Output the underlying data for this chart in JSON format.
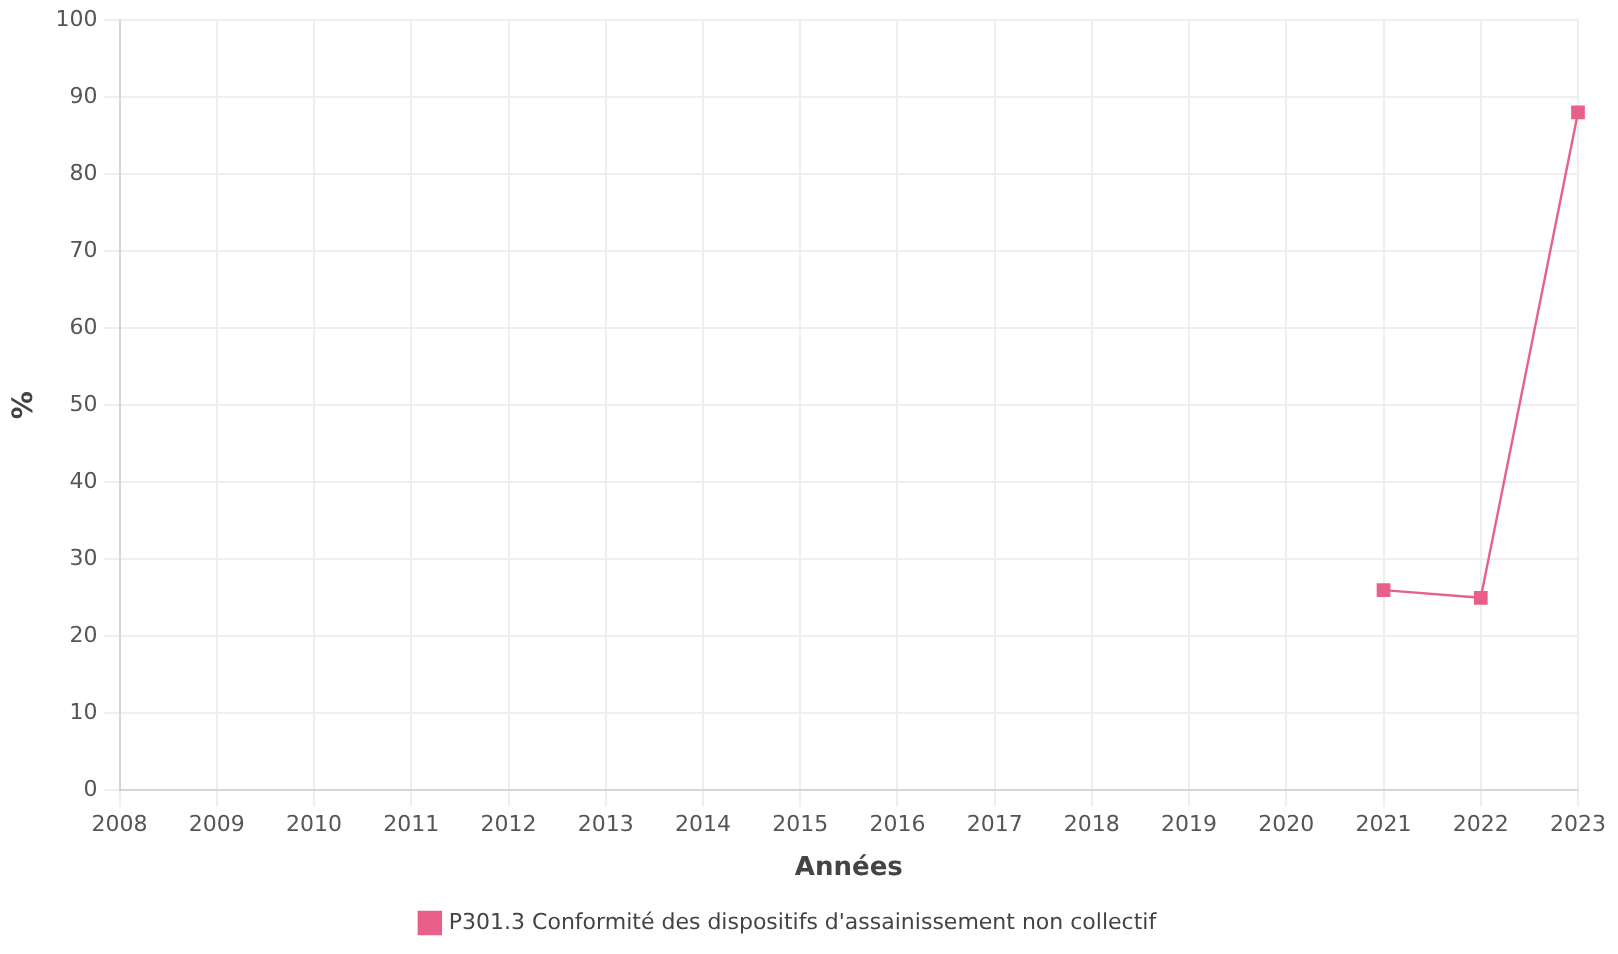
{
  "chart_data": {
    "type": "line",
    "xlabel": "Années",
    "ylabel": "%",
    "categories": [
      "2008",
      "2009",
      "2010",
      "2011",
      "2012",
      "2013",
      "2014",
      "2015",
      "2016",
      "2017",
      "2018",
      "2019",
      "2020",
      "2021",
      "2022",
      "2023"
    ],
    "series": [
      {
        "name": "P301.3 Conformité des dispositifs d'assainissement non collectif",
        "color": "#e8608a",
        "values": [
          null,
          null,
          null,
          null,
          null,
          null,
          null,
          null,
          null,
          null,
          null,
          null,
          null,
          26,
          25,
          88
        ]
      }
    ],
    "ylim": [
      0,
      100
    ],
    "yticks": [
      0,
      10,
      20,
      30,
      40,
      50,
      60,
      70,
      80,
      90,
      100
    ],
    "grid": true,
    "legend": "bottom",
    "marker": "square",
    "line_style": "solid"
  }
}
